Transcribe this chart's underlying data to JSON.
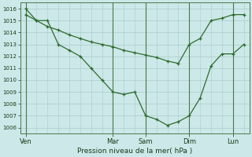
{
  "bg_color": "#cce8e8",
  "plot_bg": "#cce8e8",
  "line_color": "#2d6b2d",
  "grid_color": "#aacccc",
  "vline_color": "#4a7a4a",
  "ylim": [
    1005.5,
    1016.5
  ],
  "yticks": [
    1006,
    1007,
    1008,
    1009,
    1010,
    1011,
    1012,
    1013,
    1014,
    1015,
    1016
  ],
  "xlabel": "Pression niveau de la mer( hPa )",
  "line1_x": [
    0,
    1,
    2,
    3,
    4,
    5,
    6,
    7,
    8,
    9,
    10,
    11,
    12,
    13,
    14,
    15,
    16,
    17,
    18,
    19,
    20
  ],
  "line1_y": [
    1016,
    1015,
    1015,
    1013,
    1012.5,
    1012,
    1011,
    1010,
    1009,
    1008.8,
    1009,
    1007,
    1006.7,
    1006.2,
    1006.5,
    1007,
    1008.5,
    1011.2,
    1012.2,
    1012.2,
    1013
  ],
  "line2_x": [
    0,
    1,
    2,
    3,
    4,
    5,
    6,
    7,
    8,
    9,
    10,
    11,
    12,
    13,
    14,
    15,
    16,
    17,
    18,
    19,
    20
  ],
  "line2_y": [
    1015.5,
    1015,
    1014.5,
    1014.2,
    1013.8,
    1013.5,
    1013.2,
    1013.0,
    1012.8,
    1012.5,
    1012.3,
    1012.1,
    1011.9,
    1011.6,
    1011.4,
    1013.0,
    1013.5,
    1015.0,
    1015.2,
    1015.5,
    1015.5
  ],
  "xtick_positions": [
    0,
    8,
    11,
    15,
    19
  ],
  "xtick_labels": [
    "Ven",
    "Mar",
    "Sam",
    "Dim",
    "Lun"
  ],
  "vline_positions": [
    0,
    8,
    11,
    15,
    19
  ],
  "figsize": [
    3.2,
    2.0
  ],
  "dpi": 100
}
